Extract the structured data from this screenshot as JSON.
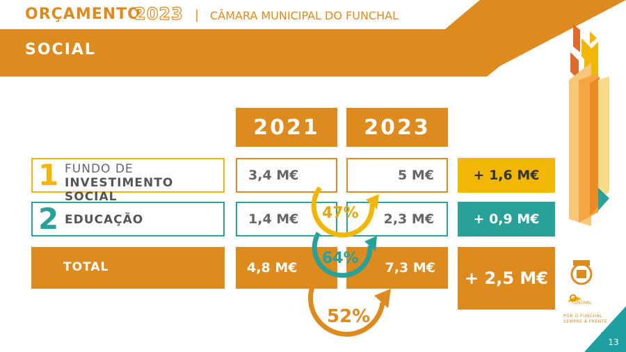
{
  "header": {
    "title": "ORÇAMENTO",
    "year": "2023",
    "separator": "|",
    "organization": "CÂMARA MUNICIPAL DO FUNCHAL",
    "section": "SOCIAL"
  },
  "columns": [
    "2021",
    "2023"
  ],
  "rows": [
    {
      "number": "1",
      "label_line1": "FUNDO DE",
      "label_line2": "INVESTIMENTO SOCIAL",
      "v2021": "3,4 M€",
      "v2023": "5 M€",
      "delta": "+ 1,6 M€",
      "growth": "47%",
      "color": "#f2b705"
    },
    {
      "number": "2",
      "label_line1": "EDUCAÇÃO",
      "v2021": "1,4 M€",
      "v2023": "2,3 M€",
      "delta": "+ 0,9 M€",
      "growth": "64%",
      "color": "#2aa198"
    },
    {
      "label_line1": "TOTAL",
      "v2021": "4,8 M€",
      "v2023": "7,3 M€",
      "delta": "+ 2,5 M€",
      "growth": "52%",
      "color": "#dd8a1e"
    }
  ],
  "branding": {
    "tagline_line1": "POR O FUNCHAL",
    "tagline_line2": "SEMPRE À FRENTE",
    "logo_text": "FUNCHAL"
  },
  "page_number": "13",
  "colors": {
    "orange": "#dd8a1e",
    "yellow": "#f2b705",
    "teal": "#2aa198"
  }
}
